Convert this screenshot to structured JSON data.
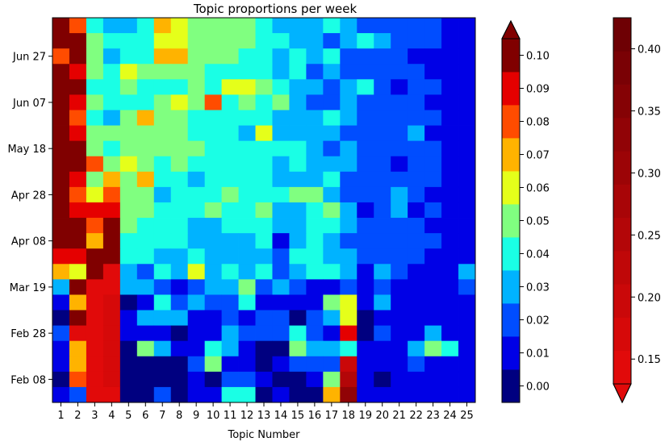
{
  "chart_data": {
    "type": "heatmap",
    "title": "Topic proportions per week",
    "xlabel": "Topic Number",
    "ylabel": "",
    "x_categories": [
      "1",
      "2",
      "3",
      "4",
      "5",
      "6",
      "7",
      "8",
      "9",
      "10",
      "11",
      "12",
      "13",
      "14",
      "15",
      "16",
      "17",
      "18",
      "19",
      "20",
      "21",
      "22",
      "23",
      "24",
      "25"
    ],
    "y_ticks": [
      "Jun 27",
      "Jun 07",
      "May 18",
      "Apr 28",
      "Apr 08",
      "Mar 19",
      "Feb 28",
      "Feb 08"
    ],
    "row_order": "top-to-bottom (most recent week first)",
    "values": [
      [
        0.1,
        0.08,
        0.04,
        0.03,
        0.03,
        0.04,
        0.065,
        0.06,
        0.05,
        0.05,
        0.05,
        0.05,
        0.04,
        0.03,
        0.03,
        0.03,
        0.04,
        0.03,
        0.02,
        0.02,
        0.02,
        0.02,
        0.02,
        0.01,
        0.01
      ],
      [
        0.1,
        0.1,
        0.05,
        0.04,
        0.04,
        0.04,
        0.06,
        0.06,
        0.05,
        0.05,
        0.05,
        0.05,
        0.04,
        0.04,
        0.03,
        0.03,
        0.02,
        0.03,
        0.04,
        0.03,
        0.02,
        0.02,
        0.02,
        0.01,
        0.01
      ],
      [
        0.08,
        0.1,
        0.05,
        0.03,
        0.04,
        0.04,
        0.065,
        0.07,
        0.05,
        0.05,
        0.05,
        0.04,
        0.04,
        0.03,
        0.04,
        0.03,
        0.04,
        0.02,
        0.02,
        0.02,
        0.02,
        0.01,
        0.01,
        0.01,
        0.01
      ],
      [
        0.1,
        0.09,
        0.05,
        0.04,
        0.06,
        0.05,
        0.05,
        0.05,
        0.05,
        0.04,
        0.04,
        0.04,
        0.04,
        0.03,
        0.04,
        0.02,
        0.03,
        0.02,
        0.02,
        0.02,
        0.02,
        0.02,
        0.01,
        0.01,
        0.01
      ],
      [
        0.1,
        0.1,
        0.04,
        0.04,
        0.05,
        0.04,
        0.04,
        0.04,
        0.05,
        0.04,
        0.055,
        0.06,
        0.05,
        0.04,
        0.03,
        0.03,
        0.02,
        0.03,
        0.04,
        0.02,
        0.01,
        0.02,
        0.02,
        0.01,
        0.01
      ],
      [
        0.1,
        0.09,
        0.05,
        0.04,
        0.04,
        0.04,
        0.05,
        0.06,
        0.05,
        0.08,
        0.04,
        0.05,
        0.04,
        0.05,
        0.03,
        0.02,
        0.02,
        0.03,
        0.02,
        0.02,
        0.02,
        0.02,
        0.01,
        0.01,
        0.01
      ],
      [
        0.1,
        0.08,
        0.04,
        0.03,
        0.05,
        0.065,
        0.05,
        0.05,
        0.04,
        0.04,
        0.04,
        0.04,
        0.04,
        0.03,
        0.03,
        0.03,
        0.04,
        0.03,
        0.02,
        0.02,
        0.02,
        0.02,
        0.02,
        0.01,
        0.01
      ],
      [
        0.1,
        0.09,
        0.05,
        0.05,
        0.05,
        0.05,
        0.05,
        0.05,
        0.04,
        0.04,
        0.04,
        0.03,
        0.06,
        0.03,
        0.03,
        0.03,
        0.03,
        0.02,
        0.02,
        0.02,
        0.02,
        0.03,
        0.01,
        0.01,
        0.01
      ],
      [
        0.1,
        0.1,
        0.05,
        0.04,
        0.05,
        0.05,
        0.05,
        0.05,
        0.05,
        0.04,
        0.04,
        0.04,
        0.04,
        0.04,
        0.04,
        0.03,
        0.02,
        0.03,
        0.02,
        0.02,
        0.02,
        0.02,
        0.02,
        0.01,
        0.01
      ],
      [
        0.1,
        0.1,
        0.08,
        0.05,
        0.06,
        0.05,
        0.04,
        0.05,
        0.04,
        0.04,
        0.04,
        0.04,
        0.04,
        0.03,
        0.04,
        0.03,
        0.03,
        0.03,
        0.02,
        0.02,
        0.01,
        0.02,
        0.02,
        0.01,
        0.01
      ],
      [
        0.1,
        0.09,
        0.05,
        0.07,
        0.05,
        0.07,
        0.04,
        0.04,
        0.03,
        0.04,
        0.04,
        0.04,
        0.04,
        0.03,
        0.03,
        0.03,
        0.04,
        0.02,
        0.02,
        0.02,
        0.02,
        0.02,
        0.02,
        0.01,
        0.01
      ],
      [
        0.1,
        0.08,
        0.06,
        0.08,
        0.05,
        0.05,
        0.03,
        0.04,
        0.04,
        0.04,
        0.05,
        0.04,
        0.04,
        0.04,
        0.05,
        0.05,
        0.03,
        0.02,
        0.02,
        0.02,
        0.03,
        0.02,
        0.01,
        0.01,
        0.01
      ],
      [
        0.1,
        0.09,
        0.09,
        0.09,
        0.05,
        0.05,
        0.04,
        0.04,
        0.04,
        0.05,
        0.04,
        0.04,
        0.05,
        0.03,
        0.03,
        0.04,
        0.05,
        0.03,
        0.01,
        0.02,
        0.03,
        0.01,
        0.02,
        0.01,
        0.01
      ],
      [
        0.1,
        0.1,
        0.08,
        0.1,
        0.05,
        0.04,
        0.04,
        0.04,
        0.03,
        0.03,
        0.04,
        0.04,
        0.04,
        0.03,
        0.03,
        0.04,
        0.04,
        0.03,
        0.02,
        0.02,
        0.02,
        0.02,
        0.01,
        0.01,
        0.01
      ],
      [
        0.1,
        0.1,
        0.07,
        0.1,
        0.04,
        0.04,
        0.04,
        0.04,
        0.03,
        0.03,
        0.03,
        0.03,
        0.04,
        0.01,
        0.03,
        0.04,
        0.03,
        0.02,
        0.02,
        0.02,
        0.02,
        0.02,
        0.02,
        0.01,
        0.01
      ],
      [
        0.09,
        0.09,
        0.1,
        0.1,
        0.04,
        0.04,
        0.03,
        0.03,
        0.04,
        0.03,
        0.03,
        0.03,
        0.03,
        0.02,
        0.04,
        0.04,
        0.03,
        0.03,
        0.02,
        0.02,
        0.02,
        0.02,
        0.01,
        0.01,
        0.01
      ],
      [
        0.07,
        0.06,
        0.1,
        0.12,
        0.03,
        0.02,
        0.04,
        0.03,
        0.055,
        0.03,
        0.04,
        0.03,
        0.04,
        0.02,
        0.03,
        0.04,
        0.04,
        0.03,
        0.01,
        0.03,
        0.02,
        0.01,
        0.01,
        0.01,
        0.03
      ],
      [
        0.03,
        0.1,
        0.12,
        0.14,
        0.03,
        0.03,
        0.02,
        0.01,
        0.02,
        0.03,
        0.03,
        0.05,
        0.02,
        0.03,
        0.02,
        0.01,
        0.01,
        0.02,
        0.01,
        0.02,
        0.01,
        0.01,
        0.01,
        0.01,
        0.02
      ],
      [
        0.01,
        0.07,
        0.13,
        0.16,
        0.0,
        0.01,
        0.04,
        0.02,
        0.03,
        0.02,
        0.02,
        0.04,
        0.01,
        0.01,
        0.01,
        0.01,
        0.05,
        0.06,
        0.01,
        0.03,
        0.01,
        0.01,
        0.01,
        0.01,
        0.01
      ],
      [
        0.0,
        0.1,
        0.15,
        0.17,
        0.01,
        0.03,
        0.03,
        0.03,
        0.01,
        0.01,
        0.02,
        0.01,
        0.02,
        0.02,
        0.0,
        0.02,
        0.03,
        0.055,
        0.0,
        0.01,
        0.01,
        0.01,
        0.01,
        0.01,
        0.01
      ],
      [
        0.02,
        0.11,
        0.15,
        0.17,
        0.01,
        0.01,
        0.01,
        0.0,
        0.01,
        0.01,
        0.03,
        0.02,
        0.02,
        0.02,
        0.04,
        0.02,
        0.01,
        0.085,
        0.0,
        0.02,
        0.01,
        0.01,
        0.03,
        0.01,
        0.01
      ],
      [
        0.01,
        0.07,
        0.14,
        0.17,
        0.0,
        0.05,
        0.03,
        0.01,
        0.01,
        0.04,
        0.03,
        0.01,
        0.0,
        0.0,
        0.05,
        0.03,
        0.03,
        0.04,
        0.01,
        0.01,
        0.01,
        0.03,
        0.05,
        0.04,
        0.01
      ],
      [
        0.01,
        0.07,
        0.14,
        0.16,
        0.0,
        0.0,
        0.0,
        0.0,
        0.02,
        0.05,
        0.01,
        0.01,
        0.0,
        0.01,
        0.02,
        0.02,
        0.02,
        0.2,
        0.01,
        0.01,
        0.01,
        0.02,
        0.01,
        0.01,
        0.01
      ],
      [
        0.0,
        0.08,
        0.14,
        0.16,
        0.0,
        0.0,
        0.0,
        0.0,
        0.01,
        0.0,
        0.02,
        0.02,
        0.01,
        0.0,
        0.0,
        0.01,
        0.05,
        0.25,
        0.01,
        0.0,
        0.01,
        0.01,
        0.01,
        0.01,
        0.01
      ],
      [
        0.01,
        0.02,
        0.14,
        0.15,
        0.0,
        0.0,
        0.02,
        0.0,
        0.01,
        0.01,
        0.04,
        0.04,
        0.0,
        0.01,
        0.0,
        0.0,
        0.07,
        0.32,
        0.01,
        0.01,
        0.01,
        0.01,
        0.01,
        0.01,
        0.01
      ]
    ],
    "colorbars": [
      {
        "colormap": "jet",
        "range": [
          0.0,
          0.1
        ],
        "ticks": [
          "0.00",
          "0.01",
          "0.02",
          "0.03",
          "0.04",
          "0.05",
          "0.06",
          "0.07",
          "0.08",
          "0.09",
          "0.10"
        ],
        "extend": "max"
      },
      {
        "colormap": "dark-red",
        "range": [
          0.13,
          0.425
        ],
        "ticks": [
          "0.15",
          "0.20",
          "0.25",
          "0.30",
          "0.35",
          "0.40"
        ],
        "extend": "min"
      }
    ],
    "grid": false,
    "legend": "none"
  }
}
